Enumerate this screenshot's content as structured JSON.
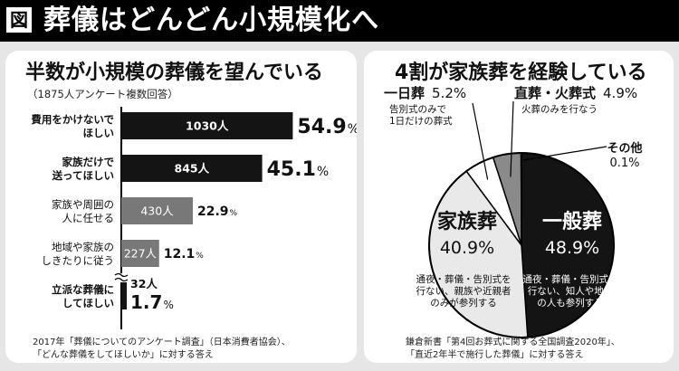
{
  "header": {
    "badge": "図",
    "title": "葬儀はどんどん小規模化へ"
  },
  "left": {
    "title": "半数が小規模の葬儀を望んでいる",
    "note": "（1875人アンケート複数回答）",
    "source_lines": [
      "2017年「葬儀についてのアンケート調査」（日本消費者協会）、",
      "「どんな葬儀をしてほしいか」に対する答え"
    ]
  },
  "right": {
    "title": "4割が家族葬を経験している",
    "source_lines": [
      "鎌倉新書「第4回お葬式に関する全国調査2020年」、",
      "「直近2年半で施行した葬儀」に対する答え"
    ]
  },
  "colors": {
    "dark": "#141414",
    "gray": "#787878",
    "light_gray": "#e9e9e9",
    "pie_gray": "#8a8a8a"
  },
  "chart_data": [
    {
      "type": "bar",
      "orientation": "horizontal",
      "title": "半数が小規模の葬儀を望んでいる",
      "subtitle": "（1875人アンケート複数回答）",
      "categories": [
        [
          "費用をかけないで",
          "ほしい"
        ],
        [
          "家族だけで",
          "送ってほしい"
        ],
        [
          "家族や周囲の",
          "人に任せる"
        ],
        [
          "地域や家族の",
          "しきたりに従う"
        ],
        [
          "立派な葬儀に",
          "してほしい"
        ]
      ],
      "values": [
        54.9,
        45.1,
        22.9,
        12.1,
        1.7
      ],
      "counts": [
        "1030人",
        "845人",
        "430人",
        "227人",
        "32人"
      ],
      "percent_labels": [
        "54.9",
        "45.1",
        "22.9",
        "12.1",
        "1.7"
      ],
      "percent_unit": "%",
      "axis_break_on_last": true
    },
    {
      "type": "pie",
      "title": "4割が家族葬を経験している",
      "slices": [
        {
          "name": "一般葬",
          "value": 48.9,
          "label": "48.9%",
          "desc": [
            "通夜・葬儀・告別式を",
            "行ない、知人や地域",
            "の人も参列する"
          ]
        },
        {
          "name": "家族葬",
          "value": 40.9,
          "label": "40.9%",
          "desc": [
            "通夜・葬儀・告別式を",
            "行ない、親族や近親者",
            "のみが参列する"
          ]
        },
        {
          "name": "一日葬",
          "value": 5.2,
          "label": "5.2%",
          "desc": [
            "告別式のみで",
            "1日だけの葬式"
          ]
        },
        {
          "name": "直葬・火葬式",
          "value": 4.9,
          "label": "4.9%",
          "desc": [
            "火葬のみを行なう"
          ]
        },
        {
          "name": "その他",
          "value": 0.1,
          "label": "0.1%",
          "desc": []
        }
      ]
    }
  ]
}
